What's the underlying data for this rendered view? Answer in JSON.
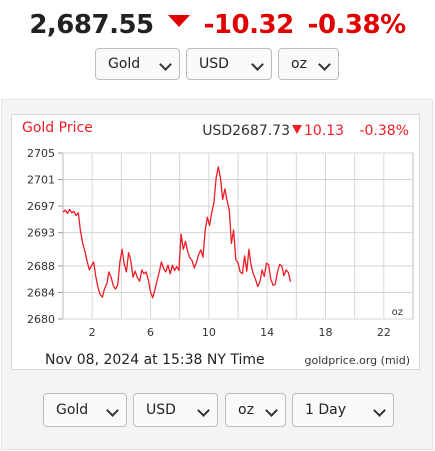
{
  "quote": {
    "price": "2,687.55",
    "change": "-10.32",
    "change_pct": "-0.38%",
    "direction_icon": "down-triangle-icon",
    "down_color": "#e00000"
  },
  "top_selectors": {
    "metal": "Gold",
    "currency": "USD",
    "unit": "oz"
  },
  "chart_header": {
    "title": "Gold Price",
    "price": "USD2687.73",
    "direction_icon": "down-triangle-icon",
    "change": "10.13",
    "change_pct": "-0.38%"
  },
  "chart_footer": {
    "timestamp": "Nov 08, 2024 at 15:38 NY Time",
    "source": "goldprice.org (mid)",
    "unit_label": "oz"
  },
  "chart_data": {
    "type": "line",
    "title": "Gold Price",
    "xlabel": "",
    "ylabel": "",
    "xlim": [
      0,
      24
    ],
    "ylim": [
      2680,
      2705
    ],
    "x_ticks": [
      2,
      6,
      10,
      14,
      18,
      22
    ],
    "y_ticks": [
      2680,
      2684,
      2688,
      2693,
      2697,
      2701,
      2705
    ],
    "grid": true,
    "line_color": "#ee1c25",
    "series": [
      {
        "x": [
          0.0,
          0.15,
          0.3,
          0.45,
          0.6,
          0.75,
          0.9,
          1.05,
          1.2,
          1.35,
          1.5,
          1.65,
          1.8,
          1.95,
          2.1,
          2.25,
          2.4,
          2.55,
          2.7,
          2.85,
          3.0,
          3.15,
          3.3,
          3.45,
          3.6,
          3.75,
          3.9,
          4.05,
          4.2,
          4.35,
          4.5,
          4.65,
          4.8,
          4.95,
          5.1,
          5.25,
          5.4,
          5.55,
          5.7,
          5.85,
          6.0,
          6.15,
          6.3,
          6.45,
          6.6,
          6.75,
          6.9,
          7.05,
          7.2,
          7.35,
          7.5,
          7.65,
          7.8,
          7.95,
          8.1,
          8.25,
          8.4,
          8.55,
          8.7,
          8.85,
          9.0,
          9.15,
          9.3,
          9.45,
          9.6,
          9.75,
          9.9,
          10.05,
          10.2,
          10.35,
          10.5,
          10.65,
          10.8,
          10.95,
          11.1,
          11.25,
          11.4,
          11.55,
          11.7,
          11.85,
          12.0,
          12.15,
          12.3,
          12.45,
          12.6,
          12.75,
          12.9,
          13.05,
          13.2,
          13.35,
          13.5,
          13.65,
          13.8,
          13.95,
          14.1,
          14.25,
          14.4,
          14.55,
          14.7,
          14.85,
          15.0,
          15.15,
          15.3,
          15.45,
          15.6
        ],
        "y": [
          2696.1,
          2696.4,
          2695.9,
          2696.5,
          2696.0,
          2696.2,
          2695.6,
          2696.0,
          2693.2,
          2691.4,
          2690.2,
          2688.7,
          2687.4,
          2688.0,
          2688.6,
          2686.4,
          2684.7,
          2683.7,
          2683.3,
          2684.6,
          2685.3,
          2687.1,
          2686.3,
          2685.0,
          2684.5,
          2685.1,
          2688.6,
          2690.5,
          2688.2,
          2687.1,
          2690.0,
          2688.8,
          2686.3,
          2687.2,
          2686.2,
          2685.7,
          2687.4,
          2686.8,
          2687.1,
          2685.9,
          2684.1,
          2683.2,
          2684.4,
          2685.8,
          2687.1,
          2688.6,
          2687.6,
          2687.1,
          2688.1,
          2686.8,
          2688.1,
          2687.3,
          2687.9,
          2687.3,
          2692.8,
          2690.5,
          2691.7,
          2690.1,
          2689.2,
          2688.8,
          2687.7,
          2688.5,
          2689.7,
          2690.4,
          2689.3,
          2693.4,
          2695.3,
          2694.1,
          2696.1,
          2697.5,
          2701.2,
          2702.9,
          2701.2,
          2698.0,
          2699.6,
          2697.8,
          2696.4,
          2691.4,
          2693.4,
          2688.9,
          2688.5,
          2687.1,
          2686.8,
          2689.5,
          2687.2,
          2690.5,
          2688.1,
          2686.8,
          2686.0,
          2684.9,
          2685.6,
          2687.4,
          2686.4,
          2688.4,
          2688.2,
          2686.0,
          2685.1,
          2685.2,
          2687.0,
          2688.2,
          2688.0,
          2686.5,
          2687.4,
          2687.0,
          2685.6
        ]
      }
    ]
  },
  "bottom_selectors": {
    "metal": "Gold",
    "currency": "USD",
    "unit": "oz",
    "range": "1 Day"
  }
}
